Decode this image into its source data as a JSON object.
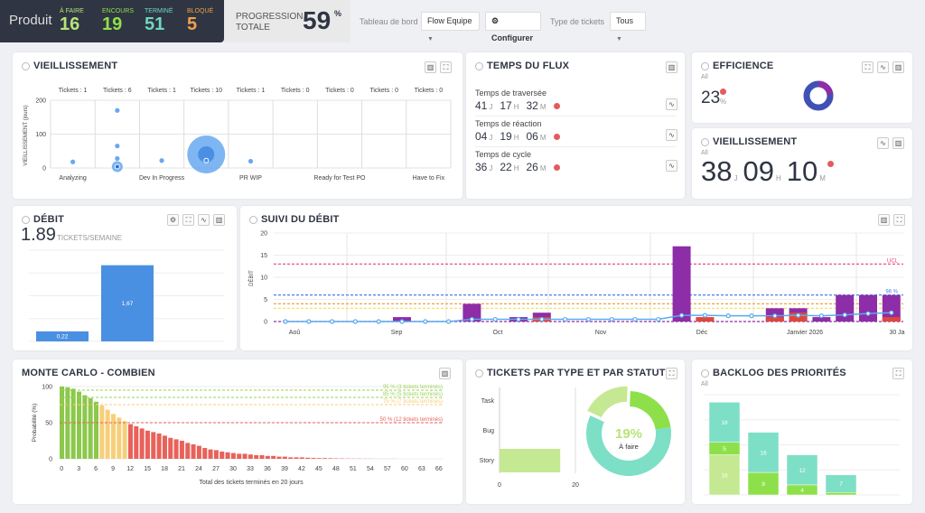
{
  "header": {
    "product": "Produit",
    "stats": [
      {
        "label": "À FAIRE",
        "value": "16",
        "color": "#b7e37a"
      },
      {
        "label": "ENCOURS",
        "value": "19",
        "color": "#8ee04a"
      },
      {
        "label": "TERMINÉ",
        "value": "51",
        "color": "#6fd6c0"
      },
      {
        "label": "BLOQUÉ",
        "value": "5",
        "color": "#f0a14a"
      }
    ],
    "progress_label_1": "PROGRESSION",
    "progress_label_2": "TOTALE",
    "progress_value": "59",
    "progress_unit": "%",
    "dashboard_label": "Tableau de bord",
    "dashboard_value": "Flow Equipe",
    "configure": "Configurer",
    "type_label": "Type de tickets",
    "type_value": "Tous"
  },
  "aging": {
    "title": "VIEILLISSEMENT",
    "ylabel": "VIEILLISSEMENT (jours)",
    "yticks": [
      "0",
      "100",
      "200"
    ],
    "columns": [
      {
        "name": "Analyzing",
        "tickets": "Tickets : 1"
      },
      {
        "name": "",
        "tickets": "Tickets : 6"
      },
      {
        "name": "Dev In Progress",
        "tickets": "Tickets : 1"
      },
      {
        "name": "",
        "tickets": "Tickets : 10"
      },
      {
        "name": "PR WIP",
        "tickets": "Tickets : 1"
      },
      {
        "name": "",
        "tickets": "Tickets : 0"
      },
      {
        "name": "Ready for Test PO",
        "tickets": "Tickets : 0"
      },
      {
        "name": "",
        "tickets": "Tickets : 0"
      },
      {
        "name": "Have to Fix",
        "tickets": "Tickets : 0"
      }
    ],
    "points": [
      {
        "col": 0,
        "days": 18,
        "size": 1
      },
      {
        "col": 1,
        "days": 170,
        "size": 1
      },
      {
        "col": 1,
        "days": 65,
        "size": 1
      },
      {
        "col": 1,
        "days": 28,
        "size": 1
      },
      {
        "col": 1,
        "days": 4,
        "size": 2
      },
      {
        "col": 2,
        "days": 22,
        "size": 1
      },
      {
        "col": 3,
        "days": 40,
        "size": 8
      },
      {
        "col": 4,
        "days": 20,
        "size": 1
      }
    ]
  },
  "flow": {
    "title": "TEMPS DU FLUX",
    "rows": [
      {
        "label": "Temps de traversée",
        "d": "41",
        "h": "17",
        "m": "32"
      },
      {
        "label": "Temps de réaction",
        "d": "04",
        "h": "19",
        "m": "06"
      },
      {
        "label": "Temps de cycle",
        "d": "36",
        "h": "22",
        "m": "26"
      }
    ],
    "u_d": "J",
    "u_h": "H",
    "u_m": "M"
  },
  "efficiency": {
    "title": "EFFICIENCE",
    "sub": "All",
    "value": "23",
    "unit": "%",
    "fraction": 0.23,
    "colors": [
      "#8e2da8",
      "#3f51b5"
    ]
  },
  "aging_small": {
    "title": "VIEILLISSEMENT",
    "sub": "All",
    "d": "38",
    "h": "09",
    "m": "10",
    "u_d": "J",
    "u_h": "H",
    "u_m": "M"
  },
  "throughput": {
    "title": "DÉBIT",
    "value": "1.89",
    "unit": "TICKETS/SEMAINE",
    "bars": [
      0.22,
      1.67
    ],
    "bar_labels": [
      "0,22",
      "1,67"
    ],
    "ymax": 2,
    "color": "#4a90e2"
  },
  "chart_data": [
    {
      "type": "bar",
      "title": "SUIVI DU DÉBIT",
      "ylabel": "DÉBIT",
      "ylim": [
        0,
        20
      ],
      "yticks": [
        "0",
        "5",
        "10",
        "15",
        "20"
      ],
      "xlabels": [
        "Aoû",
        "Sep",
        "Oct",
        "Nov",
        "Déc",
        "Janvier 2026",
        "30 Ja"
      ],
      "series": [
        {
          "values": [
            0,
            0,
            0,
            0,
            0,
            1,
            0,
            0,
            4,
            0,
            1,
            2,
            0,
            0,
            0,
            0,
            0,
            17,
            0,
            0,
            0,
            3,
            3,
            1,
            6,
            6,
            6
          ],
          "color": "#8e2da8"
        },
        {
          "values": [
            0,
            0,
            0,
            0,
            0,
            0,
            0,
            0,
            0,
            0,
            0,
            1,
            0,
            0,
            0,
            0,
            0,
            0,
            1,
            0,
            0,
            1,
            2,
            0,
            0,
            0,
            1
          ],
          "color": "#e0473a"
        },
        {
          "type": "line",
          "values": [
            0,
            0,
            0,
            0,
            0,
            0,
            0,
            0,
            0.5,
            0.5,
            0.5,
            0.5,
            0.5,
            0.5,
            0.5,
            0.5,
            0.5,
            1.4,
            1.4,
            1.3,
            1.3,
            1.3,
            1.4,
            1.3,
            1.5,
            1.8,
            2
          ],
          "color": "#5aaaf0"
        }
      ],
      "thresholds": [
        {
          "value": 13,
          "label": "UCL",
          "color": "#e8427a"
        },
        {
          "value": 6,
          "label": "98 %",
          "color": "#4a7fe8"
        },
        {
          "value": 4,
          "label": "85 %",
          "color": "#f0a14a"
        },
        {
          "value": 3,
          "label": "75 %",
          "color": "#f0e04a"
        },
        {
          "value": 0,
          "label": "50 %",
          "color": "#8e2da8"
        }
      ]
    },
    {
      "type": "bar",
      "title": "MONTE CARLO - COMBIEN",
      "xlabel": "Total des tickets terminés en 20 jours",
      "ylabel": "Probabilité (%)",
      "ylim": [
        0,
        100
      ],
      "yticks": [
        "0",
        "50",
        "100"
      ],
      "xticks": [
        "0",
        "3",
        "6",
        "9",
        "12",
        "15",
        "18",
        "21",
        "24",
        "27",
        "30",
        "33",
        "36",
        "39",
        "42",
        "45",
        "48",
        "51",
        "54",
        "57",
        "60",
        "63",
        "66"
      ],
      "values": [
        100,
        99,
        97,
        93,
        88,
        84,
        79,
        74,
        68,
        62,
        57,
        52,
        48,
        45,
        42,
        39,
        37,
        35,
        32,
        29,
        27,
        25,
        22,
        20,
        18,
        15,
        13,
        12,
        10,
        9,
        8,
        7,
        7,
        6,
        5,
        5,
        4,
        4,
        3,
        3,
        2,
        2,
        2,
        1.5,
        1.2,
        1,
        1,
        0.8,
        0.6,
        0.5,
        0.4,
        0.3,
        0.3,
        0.2,
        0.2,
        0.1,
        0.1,
        0.1,
        0.1,
        0,
        0,
        0,
        0,
        0,
        0,
        0,
        0
      ],
      "colors": {
        "high": "#8cc84b",
        "mid": "#f7cf7a",
        "low": "#e8625a"
      },
      "thresholds": [
        {
          "value": 95,
          "label": "95 % (3 tickets terminés)",
          "color": "#9ad35a"
        },
        {
          "value": 85,
          "label": "85 % (5 tickets terminés)",
          "color": "#9ad35a"
        },
        {
          "value": 75,
          "label": "75 % (7 tickets terminés)",
          "color": "#f7cf7a"
        },
        {
          "value": 50,
          "label": "50 % (12 tickets terminés)",
          "color": "#e8625a"
        }
      ]
    },
    {
      "type": "bar",
      "title": "TICKETS PAR TYPE ET PAR STATUT",
      "categories": [
        "Task",
        "Bug",
        "Story"
      ],
      "values": [
        0,
        0,
        16
      ],
      "xticks": [
        "0",
        "20"
      ],
      "xlim": [
        0,
        20
      ],
      "color": "#c5e893",
      "donut": {
        "center_value": "19%",
        "center_label": "À faire",
        "values": [
          16,
          19,
          51
        ],
        "colors": [
          "#c5e893",
          "#8ee04a",
          "#7ddfc6"
        ]
      }
    },
    {
      "type": "bar",
      "title": "BACKLOG DES PRIORITÉS",
      "sub": "All",
      "series": [
        {
          "values": [
            16,
            0,
            0,
            0
          ],
          "color": "#c5e893"
        },
        {
          "values": [
            5,
            9,
            4,
            1
          ],
          "color": "#8ee04a"
        },
        {
          "values": [
            16,
            16,
            12,
            7
          ],
          "color": "#7ddfc6"
        }
      ],
      "ymax": 40
    }
  ]
}
